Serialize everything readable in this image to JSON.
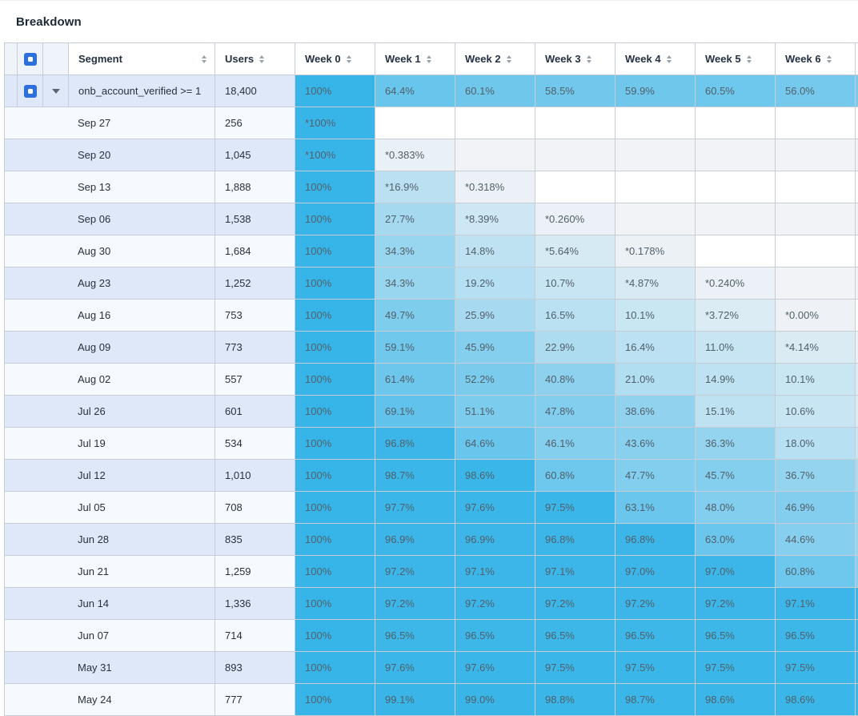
{
  "title": "Breakdown",
  "colors": {
    "heat_max": "#38b5e8",
    "heat_min": "#eef2f6",
    "checkbox_blue": "#2d6fdd",
    "stripe_dark": "#dfe8f8",
    "stripe_light": "#f6f9fe",
    "empty_cell_on_dark_row": "#f1f3f6",
    "border": "#c8ccd4"
  },
  "table": {
    "columns": {
      "segment_label": "Segment",
      "users_label": "Users",
      "weeks": [
        "Week 0",
        "Week 1",
        "Week 2",
        "Week 3",
        "Week 4",
        "Week 5",
        "Week 6"
      ]
    },
    "summary_row": {
      "segment": "onb_account_verified >= 1",
      "users": "18,400",
      "values": [
        "100%",
        "64.4%",
        "60.1%",
        "58.5%",
        "59.9%",
        "60.5%",
        "56.0%"
      ],
      "week7_sliver_heat": 52
    },
    "rows": [
      {
        "date": "Sep 27",
        "users": "256",
        "values": [
          "*100%",
          "",
          "",
          "",
          "",
          "",
          ""
        ],
        "week7_sliver_heat": null
      },
      {
        "date": "Sep 20",
        "users": "1,045",
        "values": [
          "*100%",
          "*0.383%",
          "",
          "",
          "",
          "",
          ""
        ],
        "week7_sliver_heat": null
      },
      {
        "date": "Sep 13",
        "users": "1,888",
        "values": [
          "100%",
          "*16.9%",
          "*0.318%",
          "",
          "",
          "",
          ""
        ],
        "week7_sliver_heat": null
      },
      {
        "date": "Sep 06",
        "users": "1,538",
        "values": [
          "100%",
          "27.7%",
          "*8.39%",
          "*0.260%",
          "",
          "",
          ""
        ],
        "week7_sliver_heat": null
      },
      {
        "date": "Aug 30",
        "users": "1,684",
        "values": [
          "100%",
          "34.3%",
          "14.8%",
          "*5.64%",
          "*0.178%",
          "",
          ""
        ],
        "week7_sliver_heat": null
      },
      {
        "date": "Aug 23",
        "users": "1,252",
        "values": [
          "100%",
          "34.3%",
          "19.2%",
          "10.7%",
          "*4.87%",
          "*0.240%",
          ""
        ],
        "week7_sliver_heat": null
      },
      {
        "date": "Aug 16",
        "users": "753",
        "values": [
          "100%",
          "49.7%",
          "25.9%",
          "16.5%",
          "10.1%",
          "*3.72%",
          "*0.00%"
        ],
        "week7_sliver_heat": null
      },
      {
        "date": "Aug 09",
        "users": "773",
        "values": [
          "100%",
          "59.1%",
          "45.9%",
          "22.9%",
          "16.4%",
          "11.0%",
          "*4.14%"
        ],
        "week7_sliver_heat": 0.3
      },
      {
        "date": "Aug 02",
        "users": "557",
        "values": [
          "100%",
          "61.4%",
          "52.2%",
          "40.8%",
          "21.0%",
          "14.9%",
          "10.1%"
        ],
        "week7_sliver_heat": 3
      },
      {
        "date": "Jul 26",
        "users": "601",
        "values": [
          "100%",
          "69.1%",
          "51.1%",
          "47.8%",
          "38.6%",
          "15.1%",
          "10.6%"
        ],
        "week7_sliver_heat": 4
      },
      {
        "date": "Jul 19",
        "users": "534",
        "values": [
          "100%",
          "96.8%",
          "64.6%",
          "46.1%",
          "43.6%",
          "36.3%",
          "18.0%"
        ],
        "week7_sliver_heat": 10
      },
      {
        "date": "Jul 12",
        "users": "1,010",
        "values": [
          "100%",
          "98.7%",
          "98.6%",
          "60.8%",
          "47.7%",
          "45.7%",
          "36.7%"
        ],
        "week7_sliver_heat": 25
      },
      {
        "date": "Jul 05",
        "users": "708",
        "values": [
          "100%",
          "97.7%",
          "97.6%",
          "97.5%",
          "63.1%",
          "48.0%",
          "46.9%"
        ],
        "week7_sliver_heat": 36
      },
      {
        "date": "Jun 28",
        "users": "835",
        "values": [
          "100%",
          "96.9%",
          "96.9%",
          "96.8%",
          "96.8%",
          "63.0%",
          "44.6%"
        ],
        "week7_sliver_heat": 36
      },
      {
        "date": "Jun 21",
        "users": "1,259",
        "values": [
          "100%",
          "97.2%",
          "97.1%",
          "97.1%",
          "97.0%",
          "97.0%",
          "60.8%"
        ],
        "week7_sliver_heat": 45
      },
      {
        "date": "Jun 14",
        "users": "1,336",
        "values": [
          "100%",
          "97.2%",
          "97.2%",
          "97.2%",
          "97.2%",
          "97.2%",
          "97.1%"
        ],
        "week7_sliver_heat": 97
      },
      {
        "date": "Jun 07",
        "users": "714",
        "values": [
          "100%",
          "96.5%",
          "96.5%",
          "96.5%",
          "96.5%",
          "96.5%",
          "96.5%"
        ],
        "week7_sliver_heat": 96
      },
      {
        "date": "May 31",
        "users": "893",
        "values": [
          "100%",
          "97.6%",
          "97.6%",
          "97.5%",
          "97.5%",
          "97.5%",
          "97.5%"
        ],
        "week7_sliver_heat": 97
      },
      {
        "date": "May 24",
        "users": "777",
        "values": [
          "100%",
          "99.1%",
          "99.0%",
          "98.8%",
          "98.7%",
          "98.6%",
          "98.6%"
        ],
        "week7_sliver_heat": 98
      }
    ]
  }
}
